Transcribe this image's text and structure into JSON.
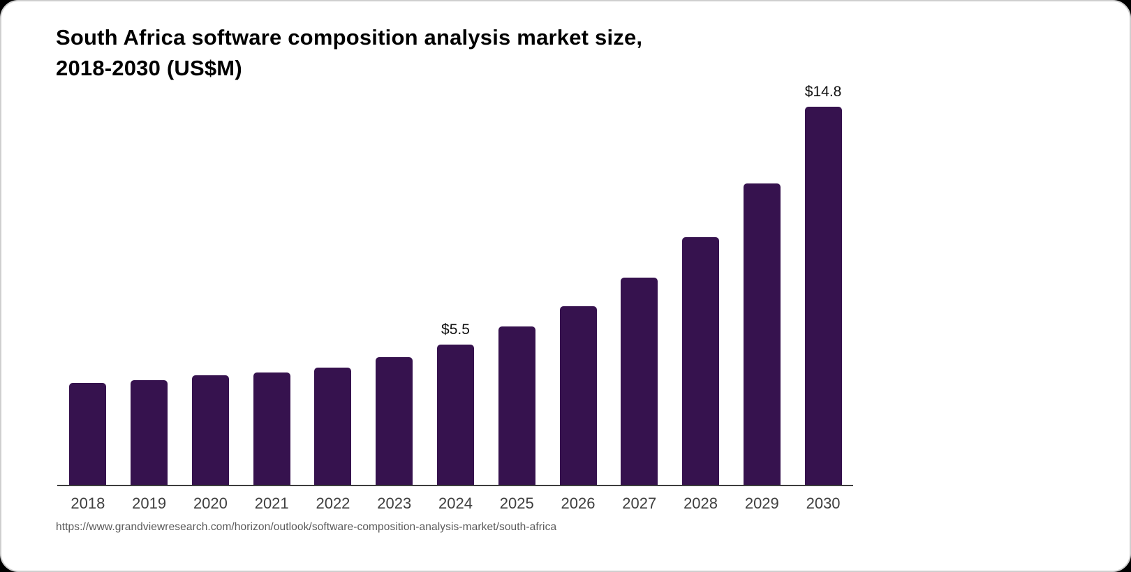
{
  "page": {
    "title_line1": "South Africa software composition analysis market size,",
    "title_line2": "2018-2030 (US$M)",
    "source_url": "https://www.grandviewresearch.com/horizon/outlook/software-composition-analysis-market/south-africa"
  },
  "colors": {
    "bar_fill": "#36124e",
    "axis_line": "#3d3d3d",
    "tick_label": "#3f3f3f",
    "title_text": "#000000",
    "source_text": "#595959",
    "card_background": "#ffffff"
  },
  "chart_data": {
    "type": "bar",
    "title": "South Africa software composition analysis market size, 2018-2030 (US$M)",
    "unit": "US$M",
    "categories": [
      "2018",
      "2019",
      "2020",
      "2021",
      "2022",
      "2023",
      "2024",
      "2025",
      "2026",
      "2027",
      "2028",
      "2029",
      "2030"
    ],
    "values": [
      4.0,
      4.1,
      4.3,
      4.4,
      4.6,
      5.0,
      5.5,
      6.2,
      7.0,
      8.1,
      9.7,
      11.8,
      14.8
    ],
    "data_labels": [
      "",
      "",
      "",
      "",
      "",
      "",
      "$5.5",
      "",
      "",
      "",
      "",
      "",
      "$14.8"
    ],
    "xlabel": "",
    "ylabel": "",
    "ylim": [
      0,
      15.2
    ],
    "grid": false,
    "legend": false,
    "y_axis_shown": false
  }
}
